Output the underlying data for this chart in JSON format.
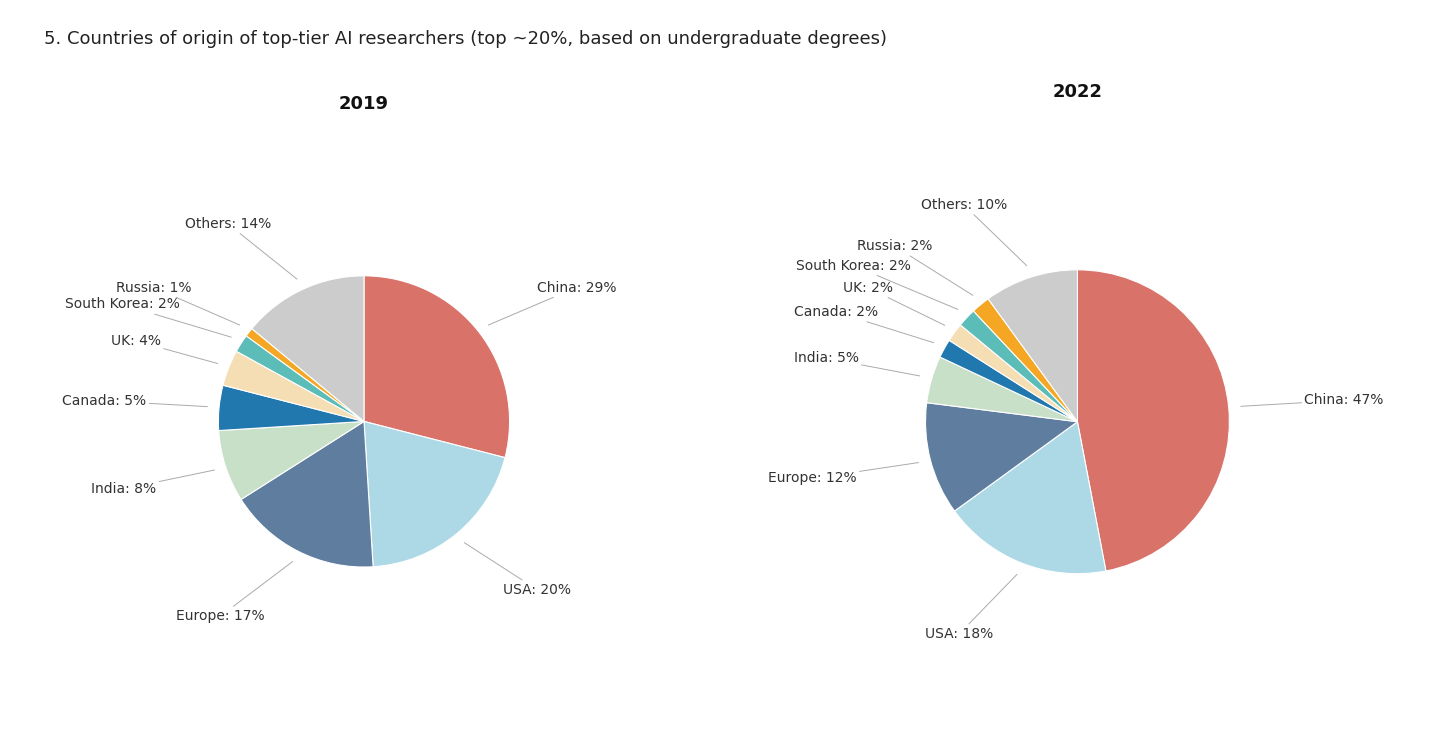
{
  "title": "5. Countries of origin of top-tier AI researchers (top ~20%, based on undergraduate degrees)",
  "title_fontsize": 13,
  "chart2019": {
    "year": "2019",
    "labels": [
      "China",
      "USA",
      "Europe",
      "India",
      "Canada",
      "UK",
      "South Korea",
      "Russia",
      "Others"
    ],
    "values": [
      29,
      20,
      17,
      8,
      5,
      4,
      2,
      1,
      14
    ],
    "colors": [
      "#d9736a",
      "#add8e6",
      "#5f7d9e",
      "#c8dfc8",
      "#2178ae",
      "#f5deb3",
      "#5bbcb8",
      "#f5a623",
      "#cccccc"
    ]
  },
  "chart2022": {
    "year": "2022",
    "labels": [
      "China",
      "USA",
      "Europe",
      "India",
      "Canada",
      "UK",
      "South Korea",
      "Russia",
      "Others"
    ],
    "values": [
      47,
      18,
      12,
      5,
      2,
      2,
      2,
      2,
      10
    ],
    "colors": [
      "#d9736a",
      "#add8e6",
      "#5f7d9e",
      "#c8dfc8",
      "#2178ae",
      "#f5deb3",
      "#5bbcb8",
      "#f5a623",
      "#cccccc"
    ]
  },
  "background_color": "#ffffff",
  "label_fontsize": 10,
  "year_fontsize": 13
}
